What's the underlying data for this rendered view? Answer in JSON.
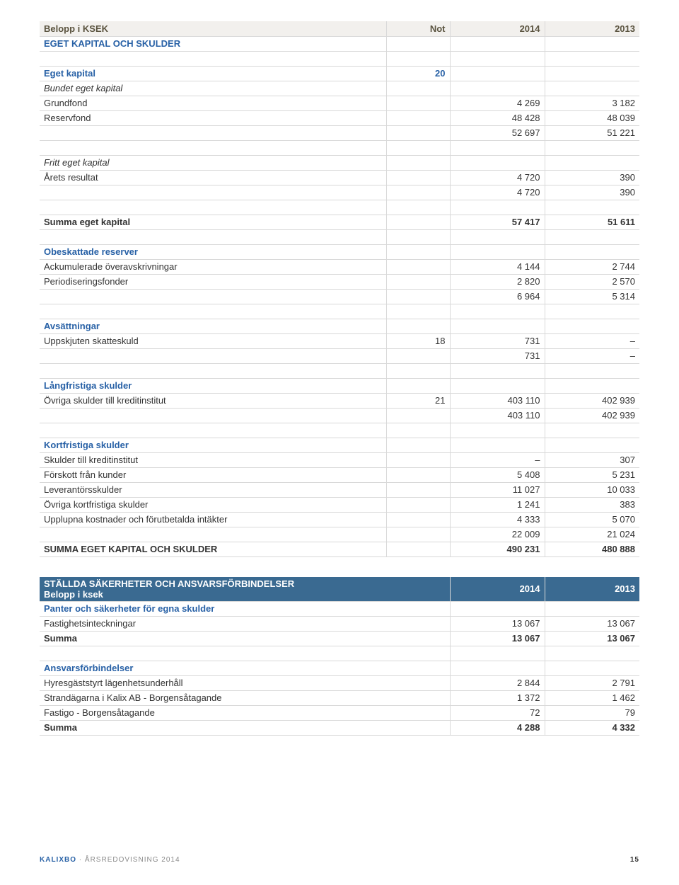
{
  "table1": {
    "header": [
      "Belopp i KSEK",
      "Not",
      "2014",
      "2013"
    ],
    "rows": [
      {
        "cls": "section",
        "cells": [
          "EGET KAPITAL OCH SKULDER",
          "",
          "",
          ""
        ]
      },
      {
        "cls": "spacer",
        "cells": [
          "",
          "",
          "",
          ""
        ]
      },
      {
        "cls": "section",
        "cells": [
          "Eget kapital",
          "20",
          "",
          ""
        ]
      },
      {
        "cls": "italic",
        "cells": [
          "Bundet eget kapital",
          "",
          "",
          ""
        ]
      },
      {
        "cls": "",
        "cells": [
          "Grundfond",
          "",
          "4 269",
          "3 182"
        ]
      },
      {
        "cls": "",
        "cells": [
          "Reservfond",
          "",
          "48 428",
          "48 039"
        ]
      },
      {
        "cls": "",
        "cells": [
          "",
          "",
          "52 697",
          "51 221"
        ]
      },
      {
        "cls": "spacer",
        "cells": [
          "",
          "",
          "",
          ""
        ]
      },
      {
        "cls": "italic",
        "cells": [
          "Fritt eget kapital",
          "",
          "",
          ""
        ]
      },
      {
        "cls": "",
        "cells": [
          "Årets resultat",
          "",
          "4 720",
          "390"
        ]
      },
      {
        "cls": "",
        "cells": [
          "",
          "",
          "4 720",
          "390"
        ]
      },
      {
        "cls": "spacer",
        "cells": [
          "",
          "",
          "",
          ""
        ]
      },
      {
        "cls": "bold",
        "cells": [
          "Summa eget kapital",
          "",
          "57 417",
          "51 611"
        ]
      },
      {
        "cls": "spacer",
        "cells": [
          "",
          "",
          "",
          ""
        ]
      },
      {
        "cls": "section",
        "cells": [
          "Obeskattade reserver",
          "",
          "",
          ""
        ]
      },
      {
        "cls": "",
        "cells": [
          "Ackumulerade överavskrivningar",
          "",
          "4 144",
          "2 744"
        ]
      },
      {
        "cls": "",
        "cells": [
          "Periodiseringsfonder",
          "",
          "2 820",
          "2 570"
        ]
      },
      {
        "cls": "",
        "cells": [
          "",
          "",
          "6 964",
          "5 314"
        ]
      },
      {
        "cls": "spacer",
        "cells": [
          "",
          "",
          "",
          ""
        ]
      },
      {
        "cls": "section",
        "cells": [
          "Avsättningar",
          "",
          "",
          ""
        ]
      },
      {
        "cls": "",
        "cells": [
          "Uppskjuten skatteskuld",
          "18",
          "731",
          "–"
        ]
      },
      {
        "cls": "",
        "cells": [
          "",
          "",
          "731",
          "–"
        ]
      },
      {
        "cls": "spacer",
        "cells": [
          "",
          "",
          "",
          ""
        ]
      },
      {
        "cls": "section",
        "cells": [
          "Långfristiga skulder",
          "",
          "",
          ""
        ]
      },
      {
        "cls": "",
        "cells": [
          "Övriga skulder till kreditinstitut",
          "21",
          "403 110",
          "402 939"
        ]
      },
      {
        "cls": "",
        "cells": [
          "",
          "",
          "403 110",
          "402 939"
        ]
      },
      {
        "cls": "spacer",
        "cells": [
          "",
          "",
          "",
          ""
        ]
      },
      {
        "cls": "section",
        "cells": [
          "Kortfristiga skulder",
          "",
          "",
          ""
        ]
      },
      {
        "cls": "",
        "cells": [
          "Skulder till kreditinstitut",
          "",
          "–",
          "307"
        ]
      },
      {
        "cls": "",
        "cells": [
          "Förskott från kunder",
          "",
          "5 408",
          "5 231"
        ]
      },
      {
        "cls": "",
        "cells": [
          "Leverantörsskulder",
          "",
          "11 027",
          "10 033"
        ]
      },
      {
        "cls": "",
        "cells": [
          "Övriga kortfristiga skulder",
          "",
          "1 241",
          "383"
        ]
      },
      {
        "cls": "",
        "cells": [
          "Upplupna kostnader och förutbetalda intäkter",
          "",
          "4 333",
          "5 070"
        ]
      },
      {
        "cls": "",
        "cells": [
          "",
          "",
          "22 009",
          "21 024"
        ]
      },
      {
        "cls": "bold",
        "cells": [
          "SUMMA EGET KAPITAL OCH SKULDER",
          "",
          "490 231",
          "480 888"
        ]
      }
    ]
  },
  "table2": {
    "header": [
      "STÄLLDA SÄKERHETER OCH ANSVARSFÖRBINDELSER\nBelopp i ksek",
      "2014",
      "2013"
    ],
    "rows": [
      {
        "cls": "section",
        "cells": [
          "Panter och säkerheter för egna skulder",
          "",
          ""
        ]
      },
      {
        "cls": "",
        "cells": [
          "Fastighetsinteckningar",
          "13 067",
          "13 067"
        ]
      },
      {
        "cls": "bold",
        "cells": [
          "Summa",
          "13 067",
          "13 067"
        ]
      },
      {
        "cls": "spacer",
        "cells": [
          "",
          "",
          ""
        ]
      },
      {
        "cls": "section",
        "cells": [
          "Ansvarsförbindelser",
          "",
          ""
        ]
      },
      {
        "cls": "",
        "cells": [
          "Hyresgäststyrt lägenhetsunderhåll",
          "2 844",
          "2 791"
        ]
      },
      {
        "cls": "",
        "cells": [
          "Strandägarna i Kalix AB - Borgensåtagande",
          "1 372",
          "1 462"
        ]
      },
      {
        "cls": "",
        "cells": [
          "Fastigo - Borgensåtagande",
          "72",
          "79"
        ]
      },
      {
        "cls": "bold",
        "cells": [
          "Summa",
          "4 288",
          "4 332"
        ]
      }
    ]
  },
  "footer": {
    "brand": "KALIXBO",
    "sep": "·",
    "doc": "ÅRSREDOVISNING 2014",
    "page": "15"
  }
}
